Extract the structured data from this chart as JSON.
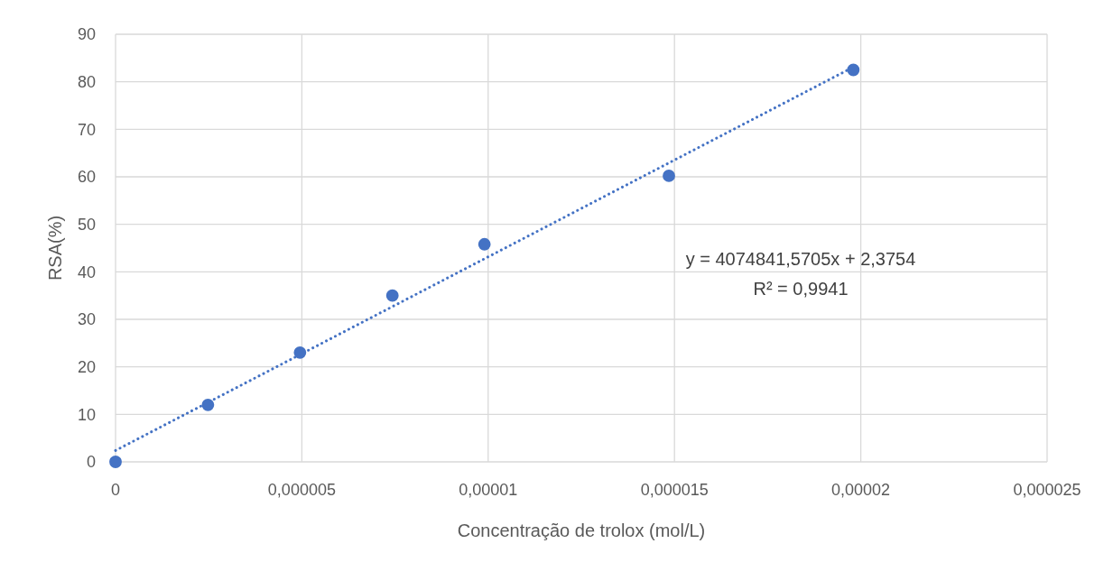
{
  "chart_data": {
    "type": "scatter",
    "xlabel": "Concentração de trolox (mol/L)",
    "ylabel": "RSA(%)",
    "xlim": [
      0,
      2.5e-05
    ],
    "ylim": [
      0,
      90
    ],
    "xticks": [
      0,
      {
        "value": 5e-06,
        "label": "0,000005"
      },
      {
        "value": 1e-05,
        "label": "0,00001"
      },
      {
        "value": 1.5e-05,
        "label": "0,000015"
      },
      {
        "value": 2e-05,
        "label": "0,00002"
      },
      {
        "value": 2.5e-05,
        "label": "0,000025"
      }
    ],
    "yticks": [
      0,
      10,
      20,
      30,
      40,
      50,
      60,
      70,
      80,
      90
    ],
    "grid": true,
    "series": [
      {
        "marker": "circle",
        "color": "#4472c4",
        "x": [
          0,
          2.48e-06,
          4.95e-06,
          7.43e-06,
          9.9e-06,
          1.485e-05,
          1.98e-05
        ],
        "values": [
          0,
          12,
          23,
          35,
          45.8,
          60.2,
          82.5
        ]
      },
      {
        "type": "line",
        "color": "#4472c4",
        "line_style": "dotted",
        "x": [
          0,
          1.98e-05
        ],
        "values": [
          2.4,
          83.1
        ]
      }
    ],
    "annotations": [
      "y = 4074841,5705x + 2,3754",
      "R² = 0,9941"
    ]
  }
}
